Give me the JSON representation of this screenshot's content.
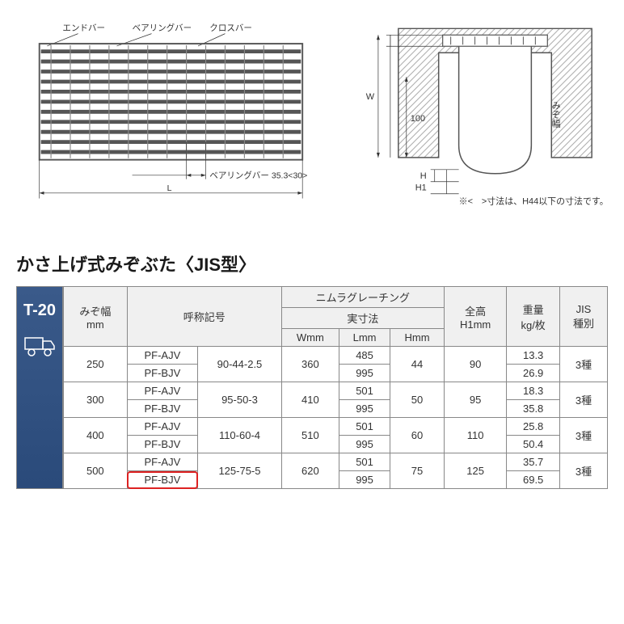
{
  "diagram": {
    "labels": {
      "endbar": "エンドバー",
      "bearingbar": "ベアリングバー",
      "crossbar": "クロスバー",
      "bearing_dim": "ベアリングバー 35.3<30>",
      "L": "L",
      "W": "W",
      "H": "H",
      "H1": "H1",
      "hundred": "100",
      "mizo": "みぞ幅"
    },
    "footnote": "※<　>寸法は、H44以下の寸法です。",
    "stroke": "#555",
    "hatch": "#888"
  },
  "title": "かさ上げ式みぞぶた〈JIS型〉",
  "side": {
    "label": "T-20"
  },
  "table": {
    "headers": {
      "mizo": "みぞ幅",
      "mm": "mm",
      "code": "呼称記号",
      "nimura": "ニムラグレーチング",
      "actual": "実寸法",
      "W": "Wmm",
      "L": "Lmm",
      "H": "Hmm",
      "totalH": "全高",
      "H1mm": "H1mm",
      "weight": "重量",
      "weightU": "kg/枚",
      "jis": "JIS",
      "jisType": "種別"
    },
    "rows": [
      {
        "mizo": "250",
        "codeA": "PF-AJV",
        "codeB": "PF-BJV",
        "num": "90-44-2.5",
        "W": "360",
        "L1": "485",
        "L2": "995",
        "H": "44",
        "H1": "90",
        "kg1": "13.3",
        "kg2": "26.9",
        "jis": "3種",
        "highlight": false
      },
      {
        "mizo": "300",
        "codeA": "PF-AJV",
        "codeB": "PF-BJV",
        "num": "95-50-3",
        "W": "410",
        "L1": "501",
        "L2": "995",
        "H": "50",
        "H1": "95",
        "kg1": "18.3",
        "kg2": "35.8",
        "jis": "3種",
        "highlight": false
      },
      {
        "mizo": "400",
        "codeA": "PF-AJV",
        "codeB": "PF-BJV",
        "num": "110-60-4",
        "W": "510",
        "L1": "501",
        "L2": "995",
        "H": "60",
        "H1": "110",
        "kg1": "25.8",
        "kg2": "50.4",
        "jis": "3種",
        "highlight": false
      },
      {
        "mizo": "500",
        "codeA": "PF-AJV",
        "codeB": "PF-BJV",
        "num": "125-75-5",
        "W": "620",
        "L1": "501",
        "L2": "995",
        "H": "75",
        "H1": "125",
        "kg1": "35.7",
        "kg2": "69.5",
        "jis": "3種",
        "highlight": true
      }
    ]
  }
}
